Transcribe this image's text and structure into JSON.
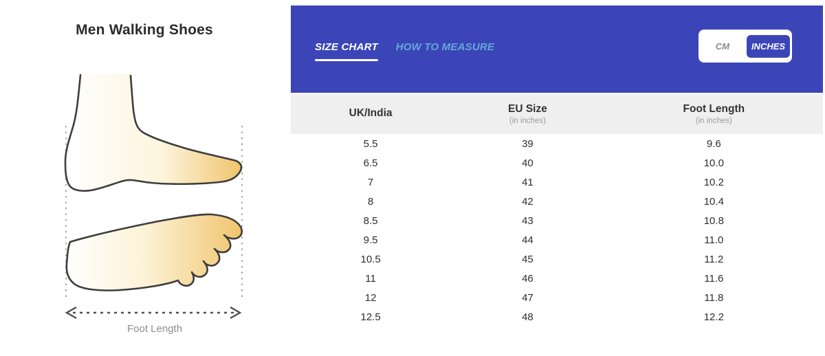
{
  "page": {
    "title": "Men Walking Shoes"
  },
  "illustration": {
    "caption": "Foot Length"
  },
  "size_panel": {
    "tabs": [
      {
        "label": "SIZE CHART"
      },
      {
        "label": "HOW TO MEASURE"
      }
    ],
    "active_tab": "SIZE CHART",
    "unit_toggle": {
      "options": [
        {
          "label": "CM"
        },
        {
          "label": "INCHES"
        }
      ],
      "selected": "INCHES"
    }
  },
  "chart_data": {
    "type": "table",
    "title": "Men Walking Shoes",
    "columns": [
      {
        "label": "UK/India",
        "sublabel": ""
      },
      {
        "label": "EU Size",
        "sublabel": "(in inches)"
      },
      {
        "label": "Foot Length",
        "sublabel": "(in inches)"
      }
    ],
    "rows": [
      [
        "5.5",
        "39",
        "9.6"
      ],
      [
        "6.5",
        "40",
        "10.0"
      ],
      [
        "7",
        "41",
        "10.2"
      ],
      [
        "8",
        "42",
        "10.4"
      ],
      [
        "8.5",
        "43",
        "10.8"
      ],
      [
        "9.5",
        "44",
        "11.0"
      ],
      [
        "10.5",
        "45",
        "11.2"
      ],
      [
        "11",
        "46",
        "11.6"
      ],
      [
        "12",
        "47",
        "11.8"
      ],
      [
        "12.5",
        "48",
        "12.2"
      ]
    ]
  },
  "colors": {
    "header_blue": "#3b45b8",
    "tab_active": "#ffffff",
    "tab_inactive": "#66a9d6",
    "table_header_bg": "#efefef",
    "muted_text": "#9b9b9b",
    "foot_tan": "#f0c46d"
  }
}
